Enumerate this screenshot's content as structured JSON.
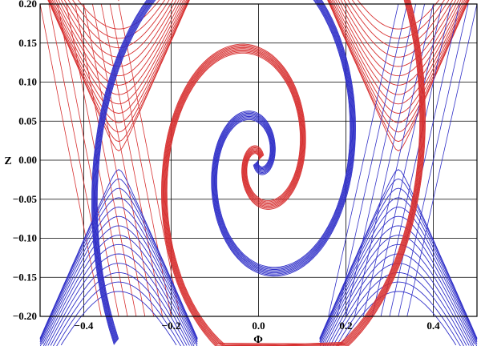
{
  "chart_data": {
    "type": "line",
    "title": "",
    "xlabel": "Φ",
    "ylabel": "Z",
    "xlim": [
      -0.5,
      0.5
    ],
    "ylim": [
      -0.2,
      0.2
    ],
    "xticks": [
      -0.4,
      -0.2,
      0.0,
      0.2,
      0.4
    ],
    "xtick_labels": [
      "−0.4",
      "−0.2",
      "0.0",
      "0.2",
      "0.4"
    ],
    "yticks": [
      -0.2,
      -0.15,
      -0.1,
      -0.05,
      0.0,
      0.05,
      0.1,
      0.15,
      0.2
    ],
    "ytick_labels": [
      "−0.20",
      "−0.15",
      "−0.10",
      "−0.05",
      "0.00",
      "0.05",
      "0.10",
      "0.15",
      "0.20"
    ],
    "grid": true,
    "legend": "none",
    "colors": {
      "red_family": "#d73030",
      "blue_family": "#3030c8",
      "grid": "#000000"
    },
    "series": [
      {
        "color": "red_family",
        "values": [
          [
            [
              -0.48,
              0.2
            ],
            [
              -0.42,
              0.12
            ],
            [
              -0.36,
              0.05
            ],
            [
              -0.32,
              0.0
            ],
            [
              -0.36,
              -0.06
            ],
            [
              -0.44,
              -0.16
            ],
            [
              -0.47,
              -0.2
            ]
          ],
          [
            [
              -0.4,
              0.18
            ],
            [
              -0.32,
              0.15
            ],
            [
              -0.18,
              0.13
            ],
            [
              -0.05,
              0.12
            ],
            [
              0.04,
              0.1
            ],
            [
              0.08,
              0.05
            ],
            [
              0.08,
              0.0
            ],
            [
              0.04,
              -0.05
            ],
            [
              -0.01,
              -0.04
            ],
            [
              -0.02,
              -0.01
            ],
            [
              0.0,
              0.0
            ]
          ],
          [
            [
              -0.03,
              0.03
            ],
            [
              0.03,
              0.04
            ],
            [
              0.06,
              0.0
            ],
            [
              0.03,
              -0.05
            ],
            [
              -0.03,
              -0.06
            ],
            [
              -0.05,
              -0.02
            ]
          ],
          [
            [
              0.02,
              -0.09
            ],
            [
              0.12,
              -0.1
            ],
            [
              0.22,
              -0.09
            ],
            [
              0.3,
              -0.04
            ],
            [
              0.32,
              0.0
            ],
            [
              0.35,
              0.06
            ],
            [
              0.4,
              0.12
            ],
            [
              0.43,
              0.17
            ],
            [
              0.45,
              0.2
            ]
          ],
          [
            [
              0.1,
              0.2
            ],
            [
              0.18,
              0.16
            ],
            [
              0.26,
              0.08
            ],
            [
              0.32,
              0.02
            ],
            [
              0.38,
              0.03
            ],
            [
              0.45,
              0.1
            ],
            [
              0.5,
              0.15
            ]
          ]
        ]
      },
      {
        "color": "blue_family",
        "values": [
          [
            [
              -0.5,
              -0.2
            ],
            [
              -0.42,
              -0.13
            ],
            [
              -0.36,
              -0.08
            ],
            [
              -0.32,
              -0.01
            ],
            [
              -0.22,
              0.07
            ],
            [
              -0.1,
              0.1
            ],
            [
              0.0,
              0.11
            ],
            [
              0.05,
              0.09
            ],
            [
              0.06,
              0.04
            ],
            [
              0.04,
              0.0
            ]
          ],
          [
            [
              0.03,
              0.06
            ],
            [
              -0.03,
              0.05
            ],
            [
              -0.04,
              0.0
            ],
            [
              0.0,
              -0.03
            ],
            [
              0.05,
              -0.02
            ],
            [
              0.06,
              0.02
            ]
          ],
          [
            [
              -0.05,
              -0.09
            ],
            [
              0.02,
              -0.13
            ],
            [
              0.12,
              -0.16
            ],
            [
              0.24,
              -0.18
            ],
            [
              0.3,
              -0.15
            ],
            [
              0.32,
              0.0
            ]
          ],
          [
            [
              0.32,
              0.0
            ],
            [
              0.38,
              0.06
            ],
            [
              0.45,
              0.14
            ],
            [
              0.48,
              0.2
            ]
          ],
          [
            [
              0.32,
              0.0
            ],
            [
              0.36,
              -0.08
            ],
            [
              0.42,
              -0.14
            ],
            [
              0.46,
              -0.2
            ]
          ]
        ]
      }
    ]
  }
}
